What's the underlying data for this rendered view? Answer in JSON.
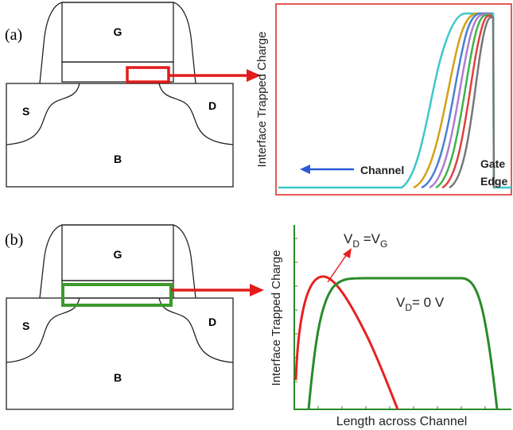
{
  "panel_a": {
    "label": "(a)",
    "device": {
      "gate": "G",
      "source": "S",
      "drain": "D",
      "body": "B"
    },
    "plot": {
      "y_label": "Interface Trapped Charge",
      "channel": "Channel",
      "gate_edge": [
        "Gate",
        "Edge"
      ]
    }
  },
  "panel_b": {
    "label": "(b)",
    "device": {
      "gate": "G",
      "source": "S",
      "drain": "D",
      "body": "B"
    },
    "plot": {
      "y_label": "Interface Trapped Charge",
      "x_label": "Length across Channel",
      "curve_vd_vg": [
        "V",
        "D",
        " =V",
        "G"
      ],
      "curve_vd_0": [
        "V",
        "D",
        "= 0 V"
      ]
    }
  }
}
